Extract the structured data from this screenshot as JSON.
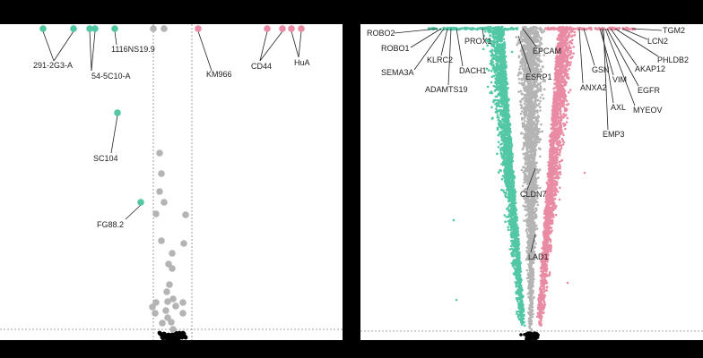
{
  "colors": {
    "background": "#000000",
    "panel": "#ffffff",
    "down": "#52c7a5",
    "up": "#e98ba3",
    "ns": "#b4b4b4",
    "base": "#000000",
    "text": "#222222"
  },
  "chart_data": [
    {
      "type": "scatter",
      "subtype": "volcano",
      "title": "",
      "xlabel": "",
      "ylabel": "",
      "thresholds": {
        "vertical_lines": 2,
        "horizontal_line": 1,
        "style": "dashed"
      },
      "points": [
        {
          "series": "down",
          "label": "291-2G3-A",
          "group": "291-2G3-A",
          "x": 48,
          "y": 32
        },
        {
          "series": "down",
          "label": "",
          "group": "291-2G3-A",
          "x": 82,
          "y": 32
        },
        {
          "series": "down",
          "label": "54-5C10-A",
          "group": "54-5C10-A",
          "x": 100,
          "y": 32
        },
        {
          "series": "down",
          "label": "",
          "group": "54-5C10-A",
          "x": 106,
          "y": 32
        },
        {
          "series": "down",
          "label": "1116NS19.9",
          "group": "1116NS19.9",
          "x": 128,
          "y": 32
        },
        {
          "series": "ns",
          "label": "",
          "x": 171,
          "y": 32
        },
        {
          "series": "ns",
          "label": "",
          "x": 183,
          "y": 32
        },
        {
          "series": "up",
          "label": "KM966",
          "group": "KM966",
          "x": 221,
          "y": 32
        },
        {
          "series": "up",
          "label": "CD44",
          "group": "CD44",
          "x": 298,
          "y": 32
        },
        {
          "series": "up",
          "label": "",
          "group": "CD44",
          "x": 315,
          "y": 32
        },
        {
          "series": "up",
          "label": "HuA",
          "group": "HuA",
          "x": 325,
          "y": 32
        },
        {
          "series": "up",
          "label": "",
          "group": "HuA",
          "x": 336,
          "y": 32
        },
        {
          "series": "down",
          "label": "SC104",
          "group": "SC104",
          "x": 131,
          "y": 126
        },
        {
          "series": "down",
          "label": "FG88.2",
          "group": "FG88.2",
          "x": 157,
          "y": 226
        },
        {
          "series": "ns",
          "label": "",
          "x": 178,
          "y": 171
        },
        {
          "series": "ns",
          "label": "",
          "x": 180,
          "y": 194
        },
        {
          "series": "ns",
          "label": "",
          "x": 178,
          "y": 214
        },
        {
          "series": "ns",
          "label": "",
          "x": 183,
          "y": 226
        },
        {
          "series": "ns",
          "label": "",
          "x": 174,
          "y": 239
        },
        {
          "series": "ns",
          "label": "",
          "x": 207,
          "y": 240
        },
        {
          "series": "ns",
          "label": "",
          "x": 180,
          "y": 269
        },
        {
          "series": "ns",
          "label": "",
          "x": 205,
          "y": 272
        },
        {
          "series": "ns",
          "label": "",
          "x": 192,
          "y": 283
        },
        {
          "series": "ns",
          "label": "",
          "x": 188,
          "y": 295
        },
        {
          "series": "ns",
          "label": "",
          "x": 192,
          "y": 300
        },
        {
          "series": "ns",
          "label": "",
          "x": 189,
          "y": 318
        },
        {
          "series": "ns",
          "label": "",
          "x": 186,
          "y": 326
        },
        {
          "series": "ns",
          "label": "",
          "x": 174,
          "y": 338
        },
        {
          "series": "ns",
          "label": "",
          "x": 187,
          "y": 337
        },
        {
          "series": "ns",
          "label": "",
          "x": 193,
          "y": 334
        },
        {
          "series": "ns",
          "label": "",
          "x": 204,
          "y": 338
        },
        {
          "series": "ns",
          "label": "",
          "x": 196,
          "y": 342
        },
        {
          "series": "ns",
          "label": "",
          "x": 170,
          "y": 343
        },
        {
          "series": "ns",
          "label": "",
          "x": 185,
          "y": 347
        },
        {
          "series": "ns",
          "label": "",
          "x": 173,
          "y": 350
        },
        {
          "series": "ns",
          "label": "",
          "x": 204,
          "y": 350
        },
        {
          "series": "ns",
          "label": "",
          "x": 187,
          "y": 355
        },
        {
          "series": "ns",
          "label": "",
          "x": 191,
          "y": 360
        },
        {
          "series": "ns",
          "label": "",
          "x": 181,
          "y": 361
        },
        {
          "series": "ns",
          "label": "",
          "x": 193,
          "y": 368
        }
      ]
    },
    {
      "type": "scatter",
      "subtype": "volcano",
      "title": "",
      "xlabel": "",
      "ylabel": "",
      "thresholds": {
        "vertical_lines": 2,
        "horizontal_line": 1,
        "style": "dashed"
      },
      "series": [
        {
          "name": "",
          "color_key": "down",
          "approx_count": 2200
        },
        {
          "name": "",
          "color_key": "ns",
          "approx_count": 2500
        },
        {
          "name": "",
          "color_key": "up",
          "approx_count": 2200
        }
      ],
      "labeled_genes": [
        "ROBO2",
        "ROBO1",
        "SEMA3A",
        "KLRC2",
        "ADAMTS19",
        "DACH1",
        "PROX1",
        "EPCAM",
        "ESRP1",
        "CLDN7",
        "LAD1",
        "GSN",
        "ANXA2",
        "VIM",
        "AXL",
        "EMP3",
        "EGFR",
        "MYEOV",
        "AKAP12",
        "PHLDB2",
        "LCN2",
        "TGM2"
      ]
    }
  ],
  "labels_left": [
    {
      "text": "291-2G3-A"
    },
    {
      "text": "54-5C10-A"
    },
    {
      "text": "1116NS19.9"
    },
    {
      "text": "KM966"
    },
    {
      "text": "CD44"
    },
    {
      "text": "HuA"
    },
    {
      "text": "SC104"
    },
    {
      "text": "FG88.2"
    }
  ],
  "labels_right": [
    {
      "text": "ROBO2"
    },
    {
      "text": "ROBO1"
    },
    {
      "text": "SEMA3A"
    },
    {
      "text": "KLRC2"
    },
    {
      "text": "ADAMTS19"
    },
    {
      "text": "DACH1"
    },
    {
      "text": "PROX1"
    },
    {
      "text": "EPCAM"
    },
    {
      "text": "ESRP1"
    },
    {
      "text": "CLDN7"
    },
    {
      "text": "LAD1"
    },
    {
      "text": "GSN"
    },
    {
      "text": "ANXA2"
    },
    {
      "text": "VIM"
    },
    {
      "text": "AXL"
    },
    {
      "text": "EMP3"
    },
    {
      "text": "EGFR"
    },
    {
      "text": "MYEOV"
    },
    {
      "text": "AKAP12"
    },
    {
      "text": "PHLDB2"
    },
    {
      "text": "LCN2"
    },
    {
      "text": "TGM2"
    }
  ]
}
